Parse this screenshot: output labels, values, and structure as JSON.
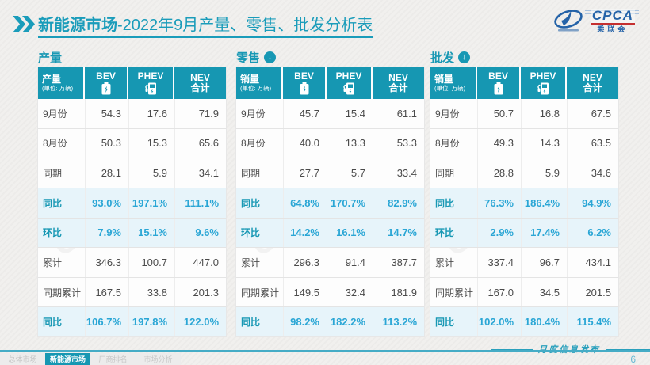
{
  "header": {
    "title_bold": "新能源市场",
    "title_rest": "-2022年9月产量、零售、批发分析表",
    "logo_text": "CPCA",
    "logo_subtext": "乘联会"
  },
  "watermark": "CPCA",
  "accent_color": "#1697b2",
  "highlight_value_color": "#2aa6d5",
  "tables": [
    {
      "section_title": "产量",
      "arrow": false,
      "header_label": "产量",
      "header_unit": "(单位: 万辆)",
      "col_bev": "BEV",
      "col_phev": "PHEV",
      "col_nev1": "NEV",
      "col_nev2": "合计",
      "rows": [
        {
          "label": "9月份",
          "values": [
            "54.3",
            "17.6",
            "71.9"
          ],
          "highlight": false
        },
        {
          "label": "8月份",
          "values": [
            "50.3",
            "15.3",
            "65.6"
          ],
          "highlight": false
        },
        {
          "label": "同期",
          "values": [
            "28.1",
            "5.9",
            "34.1"
          ],
          "highlight": false
        },
        {
          "label": "同比",
          "values": [
            "93.0%",
            "197.1%",
            "111.1%"
          ],
          "highlight": true
        },
        {
          "label": "环比",
          "values": [
            "7.9%",
            "15.1%",
            "9.6%"
          ],
          "highlight": true
        },
        {
          "label": "累计",
          "values": [
            "346.3",
            "100.7",
            "447.0"
          ],
          "highlight": false
        },
        {
          "label": "同期累计",
          "values": [
            "167.5",
            "33.8",
            "201.3"
          ],
          "highlight": false
        },
        {
          "label": "同比",
          "values": [
            "106.7%",
            "197.8%",
            "122.0%"
          ],
          "highlight": true
        }
      ]
    },
    {
      "section_title": "零售",
      "arrow": true,
      "header_label": "销量",
      "header_unit": "(单位: 万辆)",
      "col_bev": "BEV",
      "col_phev": "PHEV",
      "col_nev1": "NEV",
      "col_nev2": "合计",
      "rows": [
        {
          "label": "9月份",
          "values": [
            "45.7",
            "15.4",
            "61.1"
          ],
          "highlight": false
        },
        {
          "label": "8月份",
          "values": [
            "40.0",
            "13.3",
            "53.3"
          ],
          "highlight": false
        },
        {
          "label": "同期",
          "values": [
            "27.7",
            "5.7",
            "33.4"
          ],
          "highlight": false
        },
        {
          "label": "同比",
          "values": [
            "64.8%",
            "170.7%",
            "82.9%"
          ],
          "highlight": true
        },
        {
          "label": "环比",
          "values": [
            "14.2%",
            "16.1%",
            "14.7%"
          ],
          "highlight": true
        },
        {
          "label": "累计",
          "values": [
            "296.3",
            "91.4",
            "387.7"
          ],
          "highlight": false
        },
        {
          "label": "同期累计",
          "values": [
            "149.5",
            "32.4",
            "181.9"
          ],
          "highlight": false
        },
        {
          "label": "同比",
          "values": [
            "98.2%",
            "182.2%",
            "113.2%"
          ],
          "highlight": true
        }
      ]
    },
    {
      "section_title": "批发",
      "arrow": true,
      "header_label": "销量",
      "header_unit": "(单位: 万辆)",
      "col_bev": "BEV",
      "col_phev": "PHEV",
      "col_nev1": "NEV",
      "col_nev2": "合计",
      "rows": [
        {
          "label": "9月份",
          "values": [
            "50.7",
            "16.8",
            "67.5"
          ],
          "highlight": false
        },
        {
          "label": "8月份",
          "values": [
            "49.3",
            "14.3",
            "63.5"
          ],
          "highlight": false
        },
        {
          "label": "同期",
          "values": [
            "28.8",
            "5.9",
            "34.6"
          ],
          "highlight": false
        },
        {
          "label": "同比",
          "values": [
            "76.3%",
            "186.4%",
            "94.9%"
          ],
          "highlight": true
        },
        {
          "label": "环比",
          "values": [
            "2.9%",
            "17.4%",
            "6.2%"
          ],
          "highlight": true
        },
        {
          "label": "累计",
          "values": [
            "337.4",
            "96.7",
            "434.1"
          ],
          "highlight": false
        },
        {
          "label": "同期累计",
          "values": [
            "167.0",
            "34.5",
            "201.5"
          ],
          "highlight": false
        },
        {
          "label": "同比",
          "values": [
            "102.0%",
            "180.4%",
            "115.4%"
          ],
          "highlight": true
        }
      ]
    }
  ],
  "footer": {
    "tabs": [
      {
        "label": "总体市场",
        "active": false
      },
      {
        "label": "新能源市场",
        "active": true
      },
      {
        "label": "厂商排名",
        "active": false
      },
      {
        "label": "市场分析",
        "active": false
      }
    ],
    "note": "月度信息发布",
    "page": "6"
  }
}
